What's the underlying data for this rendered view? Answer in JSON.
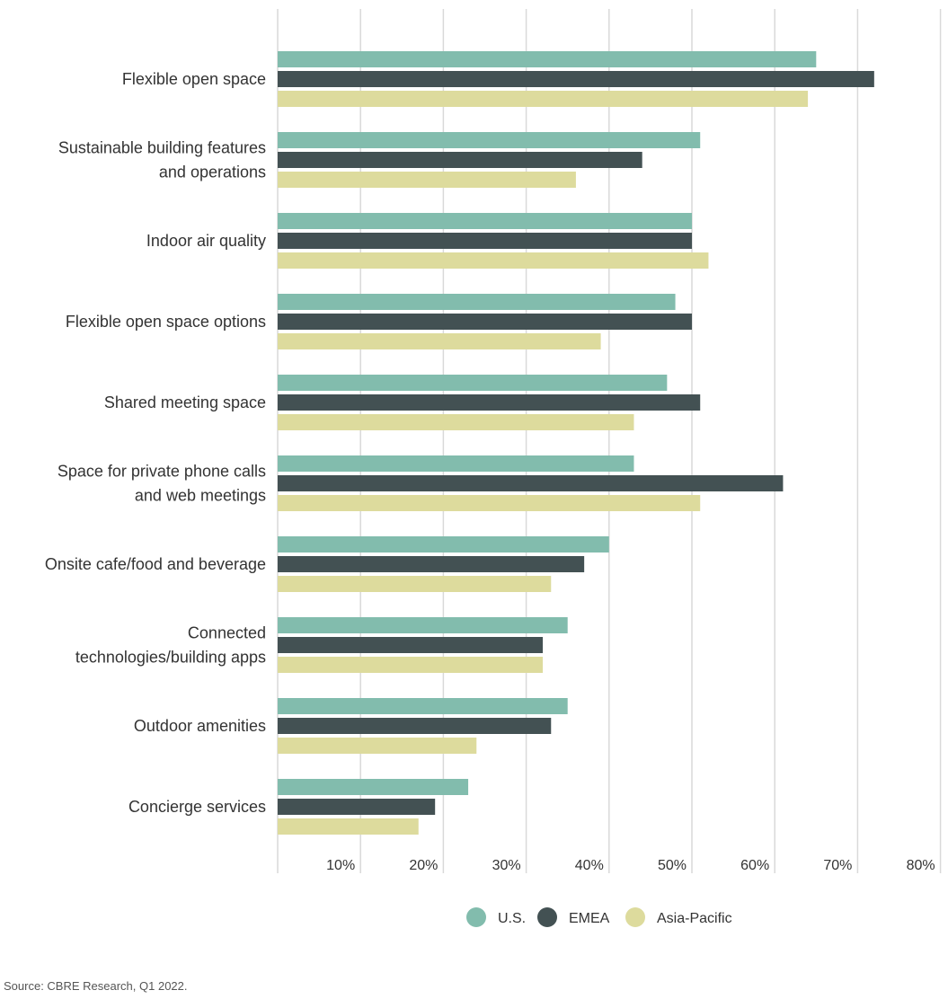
{
  "chart_data": {
    "type": "bar",
    "orientation": "horizontal",
    "categories": [
      [
        "Flexible open space"
      ],
      [
        "Sustainable building features",
        "and operations"
      ],
      [
        "Indoor air quality"
      ],
      [
        "Flexible open space options"
      ],
      [
        "Shared meeting space"
      ],
      [
        "Space for private phone calls",
        "and web meetings"
      ],
      [
        "Onsite cafe/food and beverage"
      ],
      [
        "Connected",
        "technologies/building apps"
      ],
      [
        "Outdoor amenities"
      ],
      [
        "Concierge services"
      ]
    ],
    "series": [
      {
        "name": "U.S.",
        "color": "#82bcad",
        "values": [
          65,
          51,
          50,
          48,
          47,
          43,
          40,
          35,
          35,
          23
        ]
      },
      {
        "name": "EMEA",
        "color": "#435153",
        "values": [
          72,
          44,
          50,
          50,
          51,
          61,
          37,
          32,
          33,
          19
        ]
      },
      {
        "name": "Asia-Pacific",
        "color": "#dddb9d",
        "values": [
          64,
          36,
          52,
          39,
          43,
          51,
          33,
          32,
          24,
          17
        ]
      }
    ],
    "xlim": [
      0,
      80
    ],
    "xticks": [
      "10%",
      "20%",
      "30%",
      "40%",
      "50%",
      "60%",
      "70%",
      "80%"
    ],
    "grid": true,
    "legend_position": "bottom"
  },
  "source": "Source: CBRE Research, Q1 2022."
}
